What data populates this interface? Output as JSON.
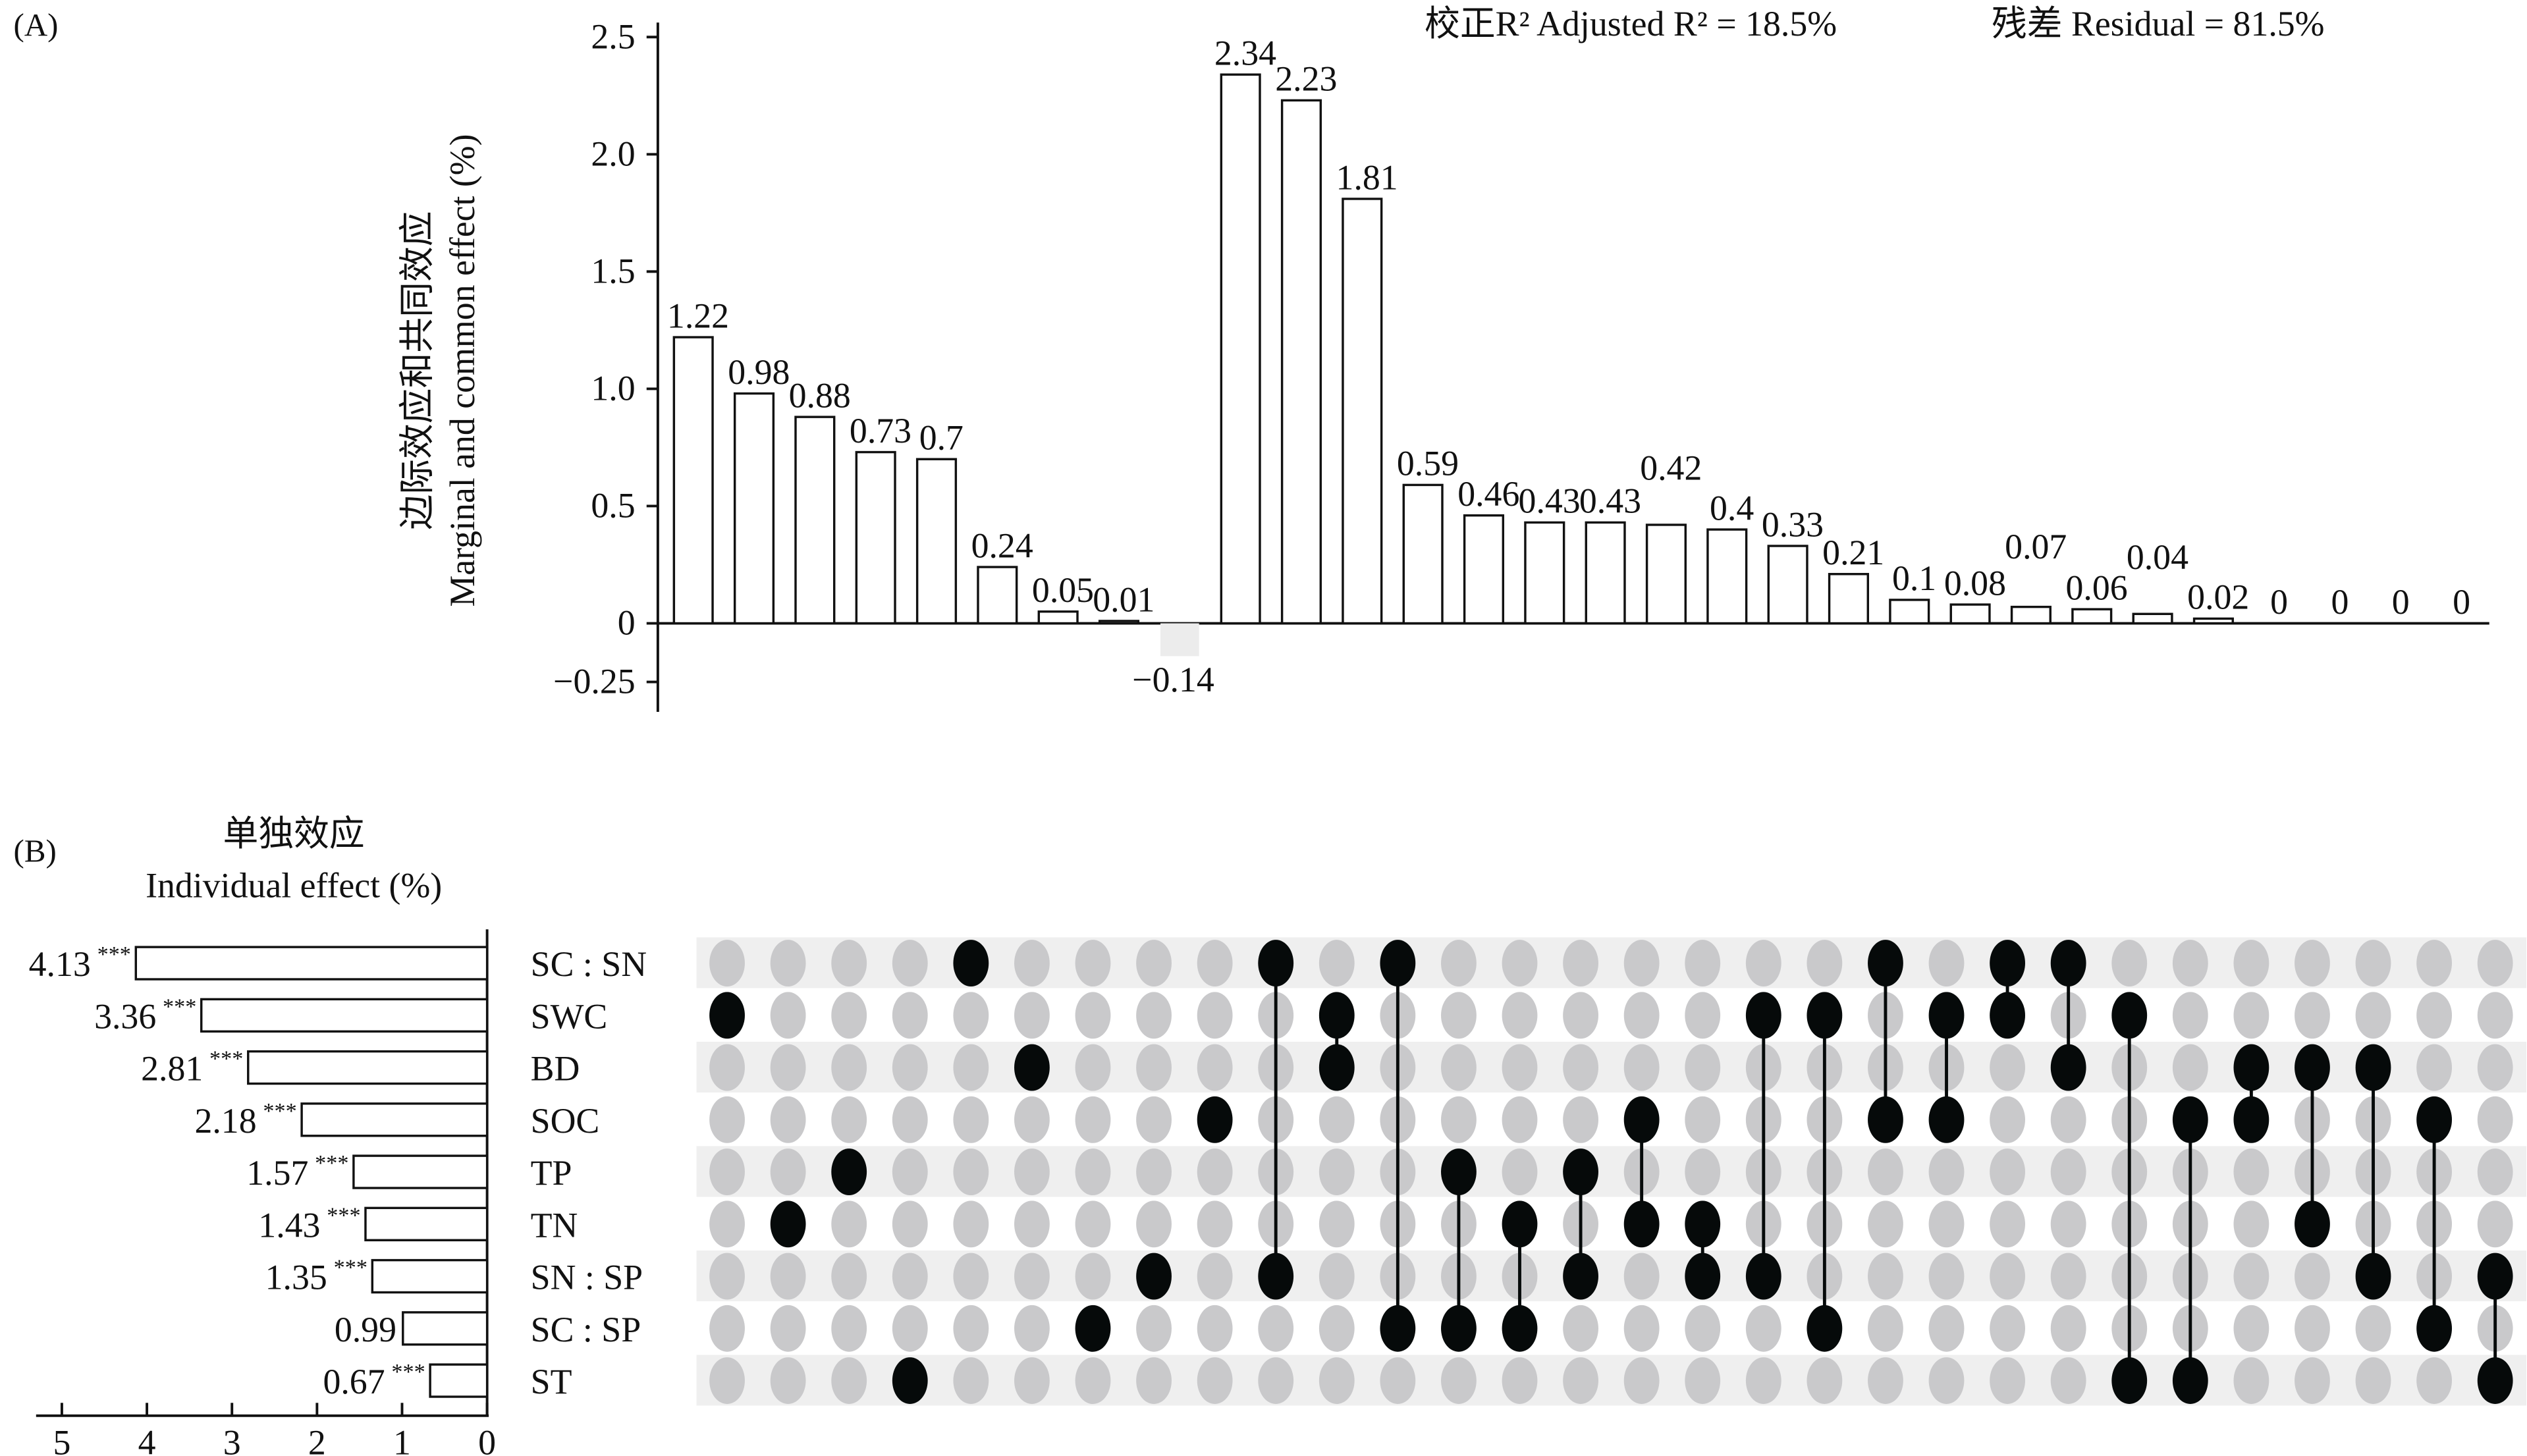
{
  "chart_data": [
    {
      "type": "bar",
      "panel_label": "(A)",
      "ylabel_cn": "边际效应和共同效应",
      "ylabel_en": "Marginal and common effect (%)",
      "annotation_r2": "校正R² Adjusted R² = 18.5%",
      "annotation_residual": "残差 Residual = 81.5%",
      "ylim": [
        -0.25,
        2.5
      ],
      "yticks": [
        2.5,
        2.0,
        1.5,
        1.0,
        0.5,
        0,
        -0.25
      ],
      "ytick_labels": [
        "2.5",
        "2.0",
        "1.5",
        "1.0",
        "0.5",
        "0",
        "−0.25"
      ],
      "values": [
        1.22,
        0.98,
        0.88,
        0.73,
        0.7,
        0.24,
        0.05,
        0.01,
        -0.14,
        2.34,
        2.23,
        1.81,
        0.59,
        0.46,
        0.43,
        0.43,
        0.42,
        0.4,
        0.33,
        0.21,
        0.1,
        0.08,
        0.07,
        0.06,
        0.04,
        0.02,
        0,
        0,
        0,
        0
      ],
      "value_labels": [
        "1.22",
        "0.98",
        "0.88",
        "0.73",
        "0.7",
        "0.24",
        "0.05",
        "0.01",
        "−0.14",
        "2.34",
        "2.23",
        "1.81",
        "0.59",
        "0.46",
        "0.43",
        "0.43",
        "0.42",
        "0.4",
        "0.33",
        "0.21",
        "0.1",
        "0.08",
        "0.07",
        "0.06",
        "0.04",
        "0.02",
        "0",
        "0",
        "0",
        "0"
      ]
    },
    {
      "type": "matrix",
      "rows": [
        "SC : SN",
        "SWC",
        "BD",
        "SOC",
        "TP",
        "TN",
        "SN : SP",
        "SC : SP",
        "ST"
      ],
      "columns": [
        [
          1
        ],
        [
          5
        ],
        [
          4
        ],
        [
          8
        ],
        [
          0
        ],
        [
          2
        ],
        [
          7
        ],
        [
          6
        ],
        [
          3
        ],
        [
          0,
          6
        ],
        [
          1,
          2
        ],
        [
          0,
          7
        ],
        [
          4,
          7
        ],
        [
          5,
          7
        ],
        [
          4,
          6
        ],
        [
          3,
          5
        ],
        [
          5,
          6
        ],
        [
          1,
          6
        ],
        [
          1,
          7
        ],
        [
          0,
          3
        ],
        [
          1,
          3
        ],
        [
          0,
          1
        ],
        [
          0,
          2
        ],
        [
          1,
          8
        ],
        [
          3,
          8
        ],
        [
          2,
          3
        ],
        [
          2,
          5
        ],
        [
          2,
          6
        ],
        [
          3,
          7
        ],
        [
          6,
          8
        ]
      ]
    },
    {
      "type": "bar",
      "orientation": "horizontal",
      "panel_label": "(B)",
      "title_cn": "单独效应",
      "title_en": "Individual effect (%)",
      "categories": [
        "SC : SN",
        "SWC",
        "BD",
        "SOC",
        "TP",
        "TN",
        "SN : SP",
        "SC : SP",
        "ST"
      ],
      "values": [
        4.13,
        3.36,
        2.81,
        2.18,
        1.57,
        1.43,
        1.35,
        0.99,
        0.67
      ],
      "value_labels": [
        "4.13",
        "3.36",
        "2.81",
        "2.18",
        "1.57",
        "1.43",
        "1.35",
        "0.99",
        "0.67"
      ],
      "significance": [
        "***",
        "***",
        "***",
        "***",
        "***",
        "***",
        "***",
        "",
        "***"
      ],
      "xlim": [
        5,
        0
      ],
      "xticks": [
        5,
        4,
        3,
        2,
        1,
        0
      ],
      "xtick_labels": [
        "5",
        "4",
        "3",
        "2",
        "1",
        "0"
      ]
    }
  ]
}
